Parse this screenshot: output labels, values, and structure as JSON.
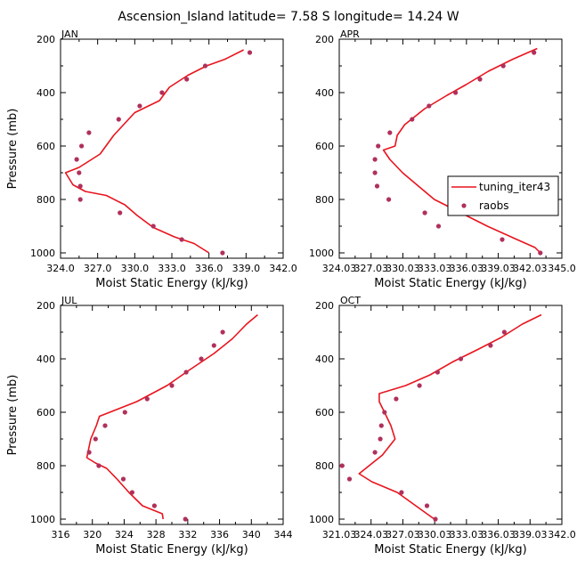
{
  "title": "Ascension_Island  latitude= 7.58 S longitude= 14.24 W",
  "colors": {
    "line": "#e8141e",
    "points": "#b0305c",
    "axes": "#000000"
  },
  "legend": {
    "placement": "right, inside APR panel",
    "entries": [
      {
        "label": "tuning_iter43",
        "kind": "line",
        "color": "#e8141e"
      },
      {
        "label": "raobs",
        "kind": "dot",
        "color": "#b0305c"
      }
    ]
  },
  "chart_data": [
    {
      "type": "line",
      "panel_label": "JAN",
      "xlabel": "Moist Static Energy (kJ/kg)",
      "ylabel": "Pressure (mb)",
      "xlim": [
        324,
        342
      ],
      "ylim": [
        1020,
        200
      ],
      "xticks": [
        324,
        327,
        330,
        333,
        336,
        339,
        342
      ],
      "xticklabels": [
        "324.0",
        "327.0",
        "330.0",
        "333.0",
        "336.0",
        "339.0",
        "342.0"
      ],
      "yticks": [
        200,
        400,
        600,
        800,
        1000
      ],
      "yticklabels": [
        "200",
        "400",
        "600",
        "800",
        "1000"
      ],
      "grid": false,
      "series": [
        {
          "name": "tuning_iter43",
          "kind": "line",
          "points": [
            [
              338.8,
              240
            ],
            [
              337.3,
              275
            ],
            [
              335.8,
              300
            ],
            [
              334.3,
              335
            ],
            [
              332.8,
              380
            ],
            [
              332.0,
              430
            ],
            [
              330.0,
              475
            ],
            [
              328.3,
              560
            ],
            [
              327.2,
              630
            ],
            [
              325.5,
              680
            ],
            [
              324.4,
              700
            ],
            [
              325.0,
              745
            ],
            [
              326.0,
              770
            ],
            [
              327.7,
              785
            ],
            [
              329.2,
              820
            ],
            [
              330.2,
              860
            ],
            [
              331.5,
              905
            ],
            [
              333.2,
              940
            ],
            [
              334.8,
              965
            ],
            [
              336.0,
              1000
            ]
          ]
        },
        {
          "name": "raobs",
          "kind": "points",
          "points": [
            [
              339.3,
              250
            ],
            [
              335.7,
              300
            ],
            [
              334.2,
              350
            ],
            [
              332.2,
              400
            ],
            [
              330.4,
              450
            ],
            [
              328.7,
              500
            ],
            [
              326.3,
              550
            ],
            [
              325.7,
              600
            ],
            [
              325.3,
              650
            ],
            [
              325.5,
              700
            ],
            [
              325.6,
              750
            ],
            [
              325.6,
              800
            ],
            [
              328.8,
              850
            ],
            [
              331.5,
              900
            ],
            [
              333.8,
              950
            ],
            [
              337.1,
              1000
            ]
          ]
        }
      ]
    },
    {
      "type": "line",
      "panel_label": "APR",
      "xlabel": "Moist Static Energy (kJ/kg)",
      "ylabel": "Pressure (mb)",
      "xlim": [
        324.03,
        345.03
      ],
      "ylim": [
        1020,
        200
      ],
      "xticks": [
        324.03,
        327.03,
        330.03,
        333.03,
        336.03,
        339.03,
        342.03,
        345.03
      ],
      "xticklabels": [
        "324.03",
        "327.03",
        "330.03",
        "333.03",
        "336.03",
        "339.03",
        "342.03",
        "345.0"
      ],
      "yticks": [
        200,
        400,
        600,
        800,
        1000
      ],
      "yticklabels": [
        "200",
        "400",
        "600",
        "800",
        "1000"
      ],
      "grid": false,
      "series": [
        {
          "name": "tuning_iter43",
          "kind": "line",
          "points": [
            [
              342.7,
              235
            ],
            [
              340.4,
              275
            ],
            [
              338.1,
              320
            ],
            [
              336.0,
              370
            ],
            [
              334.2,
              410
            ],
            [
              332.1,
              460
            ],
            [
              330.2,
              520
            ],
            [
              329.5,
              560
            ],
            [
              329.3,
              600
            ],
            [
              328.2,
              615
            ],
            [
              328.8,
              650
            ],
            [
              330.0,
              700
            ],
            [
              331.5,
              750
            ],
            [
              333.0,
              800
            ],
            [
              335.5,
              850
            ],
            [
              338.0,
              900
            ],
            [
              340.8,
              950
            ],
            [
              342.5,
              980
            ],
            [
              343.0,
              1000
            ]
          ]
        },
        {
          "name": "raobs",
          "kind": "points",
          "points": [
            [
              342.4,
              250
            ],
            [
              339.5,
              300
            ],
            [
              337.3,
              350
            ],
            [
              335.0,
              400
            ],
            [
              332.5,
              450
            ],
            [
              330.9,
              500
            ],
            [
              328.8,
              550
            ],
            [
              327.7,
              600
            ],
            [
              327.4,
              650
            ],
            [
              327.4,
              700
            ],
            [
              327.6,
              750
            ],
            [
              328.7,
              800
            ],
            [
              332.1,
              850
            ],
            [
              333.4,
              900
            ],
            [
              339.4,
              950
            ],
            [
              343.0,
              1000
            ],
            [
              336.8,
              810
            ]
          ]
        }
      ]
    },
    {
      "type": "line",
      "panel_label": "JUL",
      "xlabel": "Moist Static Energy (kJ/kg)",
      "ylabel": "Pressure (mb)",
      "xlim": [
        316,
        344
      ],
      "ylim": [
        1020,
        200
      ],
      "xticks": [
        316,
        320,
        324,
        328,
        332,
        336,
        340,
        344
      ],
      "xticklabels": [
        "316",
        "320",
        "324",
        "328",
        "332",
        "336",
        "340",
        "344"
      ],
      "yticks": [
        200,
        400,
        600,
        800,
        1000
      ],
      "yticklabels": [
        "200",
        "400",
        "600",
        "800",
        "1000"
      ],
      "grid": false,
      "series": [
        {
          "name": "tuning_iter43",
          "kind": "line",
          "points": [
            [
              340.8,
              235
            ],
            [
              339.4,
              270
            ],
            [
              337.6,
              325
            ],
            [
              335.3,
              380
            ],
            [
              332.3,
              440
            ],
            [
              329.4,
              500
            ],
            [
              325.6,
              560
            ],
            [
              320.9,
              615
            ],
            [
              320.5,
              650
            ],
            [
              319.8,
              700
            ],
            [
              319.3,
              770
            ],
            [
              320.4,
              790
            ],
            [
              321.8,
              810
            ],
            [
              323.1,
              850
            ],
            [
              324.6,
              900
            ],
            [
              326.3,
              950
            ],
            [
              328.8,
              980
            ],
            [
              328.9,
              1000
            ]
          ]
        },
        {
          "name": "raobs",
          "kind": "points",
          "points": [
            [
              336.4,
              300
            ],
            [
              335.3,
              350
            ],
            [
              333.7,
              400
            ],
            [
              331.8,
              450
            ],
            [
              330.0,
              500
            ],
            [
              326.9,
              550
            ],
            [
              324.1,
              600
            ],
            [
              321.6,
              650
            ],
            [
              320.4,
              700
            ],
            [
              319.6,
              750
            ],
            [
              320.8,
              800
            ],
            [
              323.9,
              850
            ],
            [
              325.0,
              900
            ],
            [
              327.8,
              950
            ],
            [
              331.7,
              1000
            ]
          ]
        }
      ]
    },
    {
      "type": "line",
      "panel_label": "OCT",
      "xlabel": "Moist Static Energy (kJ/kg)",
      "ylabel": "Pressure (mb)",
      "xlim": [
        321.03,
        342.03
      ],
      "ylim": [
        1020,
        200
      ],
      "xticks": [
        321.03,
        324.03,
        327.03,
        330.03,
        333.03,
        336.03,
        339.03,
        342.03
      ],
      "xticklabels": [
        "321.03",
        "324.03",
        "327.03",
        "330.03",
        "333.03",
        "336.03",
        "339.03",
        "342.0"
      ],
      "yticks": [
        200,
        400,
        600,
        800,
        1000
      ],
      "yticklabels": [
        "200",
        "400",
        "600",
        "800",
        "1000"
      ],
      "grid": false,
      "series": [
        {
          "name": "tuning_iter43",
          "kind": "line",
          "points": [
            [
              340.1,
              235
            ],
            [
              338.3,
              270
            ],
            [
              336.3,
              320
            ],
            [
              334.1,
              365
            ],
            [
              331.8,
              410
            ],
            [
              329.6,
              460
            ],
            [
              327.3,
              500
            ],
            [
              324.8,
              530
            ],
            [
              324.8,
              560
            ],
            [
              325.3,
              600
            ],
            [
              325.9,
              650
            ],
            [
              326.3,
              700
            ],
            [
              325.1,
              760
            ],
            [
              322.9,
              830
            ],
            [
              324.1,
              860
            ],
            [
              326.5,
              900
            ],
            [
              328.6,
              960
            ],
            [
              330.0,
              1000
            ]
          ]
        },
        {
          "name": "raobs",
          "kind": "points",
          "points": [
            [
              336.6,
              300
            ],
            [
              335.3,
              350
            ],
            [
              332.5,
              400
            ],
            [
              330.3,
              450
            ],
            [
              328.6,
              500
            ],
            [
              326.4,
              550
            ],
            [
              325.3,
              600
            ],
            [
              325.0,
              650
            ],
            [
              324.9,
              700
            ],
            [
              324.4,
              750
            ],
            [
              321.3,
              800
            ],
            [
              322.0,
              850
            ],
            [
              326.9,
              900
            ],
            [
              329.3,
              950
            ],
            [
              330.1,
              1000
            ]
          ]
        }
      ]
    }
  ]
}
